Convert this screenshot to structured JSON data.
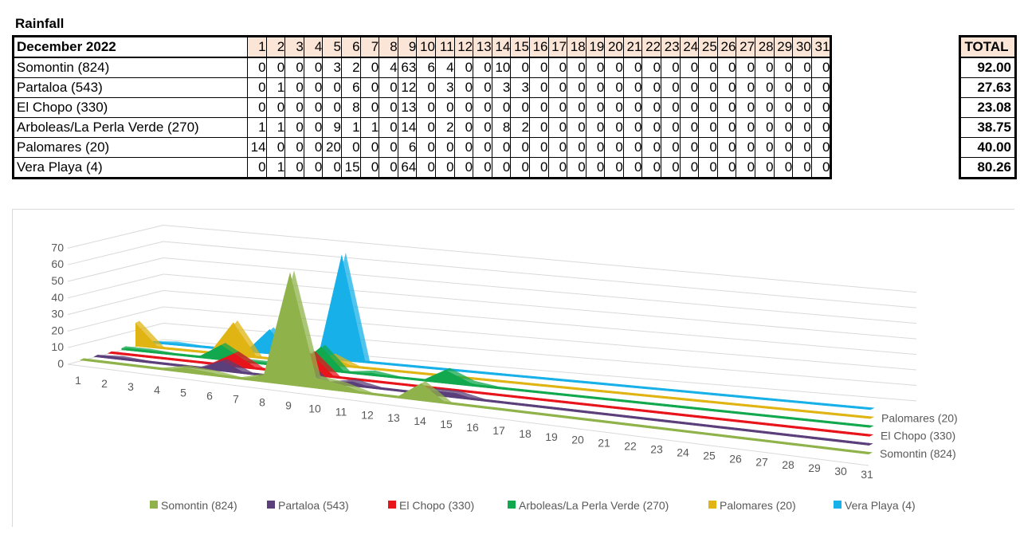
{
  "heading": "Rainfall",
  "table": {
    "header_label": "December 2022",
    "days": [
      "1",
      "2",
      "3",
      "4",
      "5",
      "6",
      "7",
      "8",
      "9",
      "10",
      "11",
      "12",
      "13",
      "14",
      "15",
      "16",
      "17",
      "18",
      "19",
      "20",
      "21",
      "22",
      "23",
      "24",
      "25",
      "26",
      "27",
      "28",
      "29",
      "30",
      "31"
    ],
    "total_label": "TOTAL",
    "rows": [
      {
        "station": "Somontin (824)",
        "values": [
          0,
          0,
          0,
          0,
          3,
          2,
          0,
          4,
          63,
          6,
          4,
          0,
          0,
          10,
          0,
          0,
          0,
          0,
          0,
          0,
          0,
          0,
          0,
          0,
          0,
          0,
          0,
          0,
          0,
          0,
          0
        ],
        "total": "92.00"
      },
      {
        "station": "Partaloa (543)",
        "values": [
          0,
          1,
          0,
          0,
          0,
          6,
          0,
          0,
          12,
          0,
          3,
          0,
          0,
          3,
          3,
          0,
          0,
          0,
          0,
          0,
          0,
          0,
          0,
          0,
          0,
          0,
          0,
          0,
          0,
          0,
          0
        ],
        "total": "27.63"
      },
      {
        "station": "El Chopo (330)",
        "values": [
          0,
          0,
          0,
          0,
          0,
          8,
          0,
          0,
          13,
          0,
          0,
          0,
          0,
          0,
          0,
          0,
          0,
          0,
          0,
          0,
          0,
          0,
          0,
          0,
          0,
          0,
          0,
          0,
          0,
          0,
          0
        ],
        "total": "23.08"
      },
      {
        "station": "Arboleas/La Perla Verde (270)",
        "values": [
          1,
          1,
          0,
          0,
          9,
          1,
          1,
          0,
          14,
          0,
          2,
          0,
          0,
          8,
          2,
          0,
          0,
          0,
          0,
          0,
          0,
          0,
          0,
          0,
          0,
          0,
          0,
          0,
          0,
          0,
          0
        ],
        "total": "38.75"
      },
      {
        "station": "Palomares (20)",
        "values": [
          14,
          0,
          0,
          0,
          20,
          0,
          0,
          0,
          6,
          0,
          0,
          0,
          0,
          0,
          0,
          0,
          0,
          0,
          0,
          0,
          0,
          0,
          0,
          0,
          0,
          0,
          0,
          0,
          0,
          0,
          0
        ],
        "total": "40.00"
      },
      {
        "station": "Vera Playa (4)",
        "values": [
          0,
          1,
          0,
          0,
          0,
          15,
          0,
          0,
          64,
          0,
          0,
          0,
          0,
          0,
          0,
          0,
          0,
          0,
          0,
          0,
          0,
          0,
          0,
          0,
          0,
          0,
          0,
          0,
          0,
          0,
          0
        ],
        "total": "80.26"
      }
    ]
  },
  "chart_data": {
    "type": "area",
    "view": "3d",
    "categories": [
      "1",
      "2",
      "3",
      "4",
      "5",
      "6",
      "7",
      "8",
      "9",
      "10",
      "11",
      "12",
      "13",
      "14",
      "15",
      "16",
      "17",
      "18",
      "19",
      "20",
      "21",
      "22",
      "23",
      "24",
      "25",
      "26",
      "27",
      "28",
      "29",
      "30",
      "31"
    ],
    "series": [
      {
        "name": "Somontin (824)",
        "color": "#8fb34a",
        "values": [
          0,
          0,
          0,
          0,
          3,
          2,
          0,
          4,
          63,
          6,
          4,
          0,
          0,
          10,
          0,
          0,
          0,
          0,
          0,
          0,
          0,
          0,
          0,
          0,
          0,
          0,
          0,
          0,
          0,
          0,
          0
        ]
      },
      {
        "name": "Partaloa (543)",
        "color": "#5b3f7a",
        "values": [
          0,
          1,
          0,
          0,
          0,
          6,
          0,
          0,
          12,
          0,
          3,
          0,
          0,
          3,
          3,
          0,
          0,
          0,
          0,
          0,
          0,
          0,
          0,
          0,
          0,
          0,
          0,
          0,
          0,
          0,
          0
        ]
      },
      {
        "name": "El Chopo (330)",
        "color": "#e8141b",
        "values": [
          0,
          0,
          0,
          0,
          0,
          8,
          0,
          0,
          13,
          0,
          0,
          0,
          0,
          0,
          0,
          0,
          0,
          0,
          0,
          0,
          0,
          0,
          0,
          0,
          0,
          0,
          0,
          0,
          0,
          0,
          0
        ]
      },
      {
        "name": "Arboleas/La Perla Verde (270)",
        "color": "#12a84e",
        "values": [
          1,
          1,
          0,
          0,
          9,
          1,
          1,
          0,
          14,
          0,
          2,
          0,
          0,
          8,
          2,
          0,
          0,
          0,
          0,
          0,
          0,
          0,
          0,
          0,
          0,
          0,
          0,
          0,
          0,
          0,
          0
        ]
      },
      {
        "name": "Palomares (20)",
        "color": "#e0b412",
        "values": [
          14,
          0,
          0,
          0,
          20,
          0,
          0,
          0,
          6,
          0,
          0,
          0,
          0,
          0,
          0,
          0,
          0,
          0,
          0,
          0,
          0,
          0,
          0,
          0,
          0,
          0,
          0,
          0,
          0,
          0,
          0
        ]
      },
      {
        "name": "Vera Playa (4)",
        "color": "#17b0e8",
        "values": [
          0,
          1,
          0,
          0,
          0,
          15,
          0,
          0,
          64,
          0,
          0,
          0,
          0,
          0,
          0,
          0,
          0,
          0,
          0,
          0,
          0,
          0,
          0,
          0,
          0,
          0,
          0,
          0,
          0,
          0,
          0
        ]
      }
    ],
    "y_ticks": [
      "0",
      "10",
      "20",
      "30",
      "40",
      "50",
      "60",
      "70"
    ],
    "ylim": [
      0,
      70
    ],
    "depth_labels": [
      "Palomares (20)",
      "El Chopo (330)",
      "Somontin (824)"
    ],
    "grid": true,
    "legend_position": "bottom"
  }
}
